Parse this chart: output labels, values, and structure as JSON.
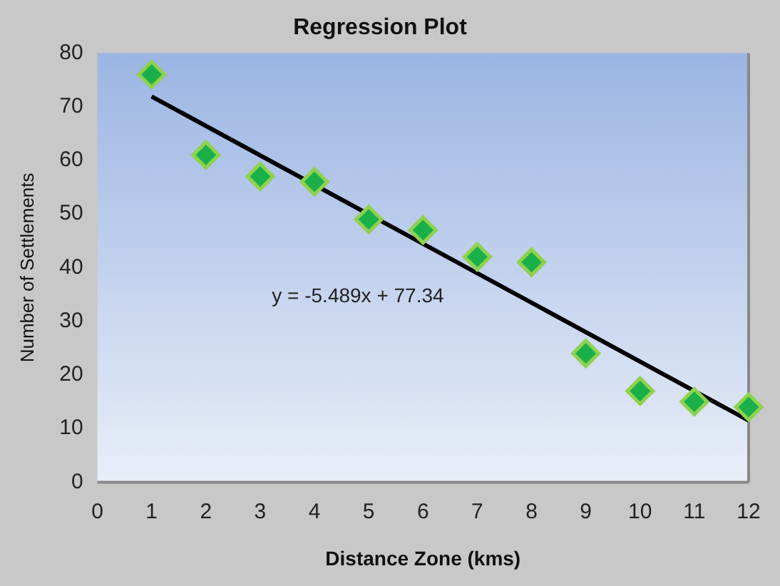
{
  "chart_data": {
    "type": "scatter",
    "title": "Regression Plot",
    "xlabel": "Distance Zone (kms)",
    "ylabel": "Number of Settlements",
    "x": [
      1,
      2,
      3,
      4,
      5,
      6,
      7,
      8,
      9,
      10,
      11,
      12
    ],
    "series": [
      {
        "type": "scatter",
        "color": "#19b04a",
        "marker": "diamond",
        "values": [
          76,
          61,
          57,
          56,
          49,
          47,
          42,
          41,
          24,
          17,
          15,
          14
        ]
      },
      {
        "type": "line",
        "color": "#000000",
        "marker": "none",
        "line_style": "solid",
        "x": [
          1,
          12
        ],
        "values": [
          71.9,
          11.5
        ]
      }
    ],
    "annotations": [
      "y = -5.489x + 77.34"
    ],
    "xlim": [
      0,
      12
    ],
    "xticks": [
      0,
      1,
      2,
      3,
      4,
      5,
      6,
      7,
      8,
      9,
      10,
      11,
      12
    ],
    "ylim": [
      0,
      80
    ],
    "yticks": [
      0,
      10,
      20,
      30,
      40,
      50,
      60,
      70,
      80
    ],
    "grid": false,
    "legend": false
  }
}
